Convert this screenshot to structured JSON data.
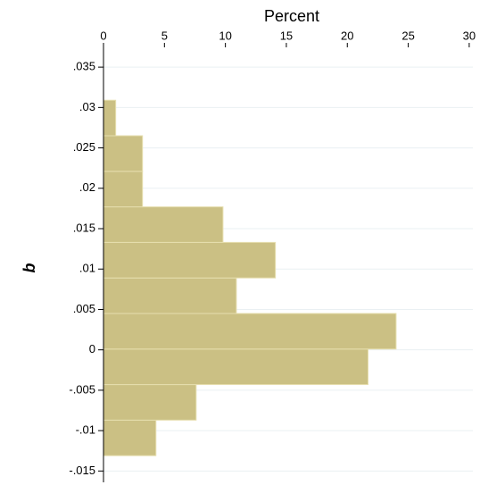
{
  "chart_data": {
    "type": "histogram",
    "orientation": "horizontal",
    "x_label": "Percent",
    "y_label": "b",
    "bins": [
      -0.0131,
      -0.0087,
      -0.0043,
      0.0001,
      0.0045,
      0.0089,
      0.0133,
      0.0177,
      0.0221,
      0.0265,
      0.0309
    ],
    "values": [
      4.3,
      7.6,
      21.7,
      24.0,
      10.9,
      14.1,
      9.8,
      3.2,
      3.2,
      1.0
    ],
    "color": "#cbc084",
    "xlim": [
      0,
      30.3
    ],
    "xticks": [
      0,
      5,
      10,
      15,
      20,
      25,
      30
    ],
    "ylim": [
      -0.0164,
      0.038
    ],
    "yticks": [
      {
        "value": -0.015,
        "label": "-.015"
      },
      {
        "value": -0.01,
        "label": "-.01"
      },
      {
        "value": -0.005,
        "label": "-.005"
      },
      0,
      {
        "value": 0.005,
        "label": ".005"
      },
      {
        "value": 0.01,
        "label": ".01"
      },
      {
        "value": 0.015,
        "label": ".015"
      },
      {
        "value": 0.02,
        "label": ".02"
      },
      {
        "value": 0.025,
        "label": ".025"
      },
      {
        "value": 0.03,
        "label": ".03"
      },
      {
        "value": 0.035,
        "label": ".035"
      }
    ],
    "grid": true
  }
}
